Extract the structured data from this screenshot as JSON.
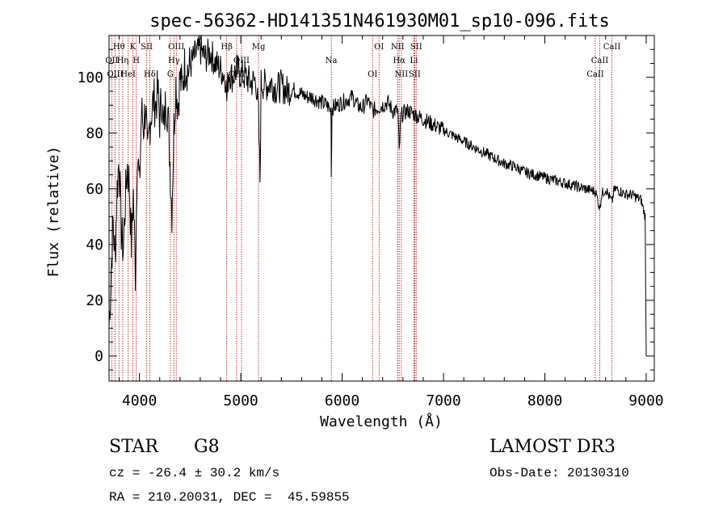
{
  "chart_data": {
    "type": "line",
    "title": "spec-56362-HD141351N461930M01_sp10-096.fits",
    "xlabel": "Wavelength (Å)",
    "ylabel": "Flux (relative)",
    "xlim": [
      3700,
      9080
    ],
    "ylim": [
      -9,
      115
    ],
    "xticks": [
      4000,
      5000,
      6000,
      7000,
      8000,
      9000
    ],
    "yticks": [
      0,
      20,
      40,
      60,
      80,
      100
    ],
    "series": [
      {
        "name": "flux",
        "x": [
          3700,
          3720,
          3740,
          3760,
          3780,
          3800,
          3820,
          3840,
          3860,
          3880,
          3900,
          3920,
          3940,
          3960,
          3980,
          4000,
          4020,
          4040,
          4060,
          4080,
          4100,
          4120,
          4140,
          4160,
          4180,
          4200,
          4220,
          4240,
          4260,
          4280,
          4300,
          4320,
          4340,
          4360,
          4380,
          4400,
          4420,
          4440,
          4460,
          4480,
          4500,
          4550,
          4600,
          4650,
          4700,
          4750,
          4800,
          4850,
          4861,
          4880,
          4920,
          4960,
          5000,
          5050,
          5100,
          5150,
          5175,
          5190,
          5200,
          5250,
          5300,
          5350,
          5400,
          5450,
          5500,
          5550,
          5600,
          5650,
          5700,
          5750,
          5800,
          5850,
          5890,
          5893,
          5900,
          5950,
          6000,
          6050,
          6100,
          6150,
          6200,
          6250,
          6300,
          6350,
          6400,
          6450,
          6500,
          6550,
          6563,
          6580,
          6600,
          6650,
          6700,
          6750,
          6800,
          6850,
          6900,
          6950,
          7000,
          7100,
          7200,
          7300,
          7400,
          7500,
          7600,
          7700,
          7800,
          7900,
          8000,
          8100,
          8200,
          8300,
          8400,
          8500,
          8542,
          8560,
          8600,
          8662,
          8680,
          8700,
          8750,
          8800,
          8850,
          8900,
          8950,
          8990,
          9000
        ],
        "y": [
          10,
          30,
          48,
          35,
          60,
          72,
          45,
          38,
          55,
          68,
          62,
          40,
          58,
          30,
          75,
          60,
          88,
          82,
          90,
          70,
          83,
          88,
          92,
          90,
          95,
          85,
          93,
          80,
          92,
          88,
          70,
          52,
          82,
          98,
          90,
          100,
          96,
          103,
          105,
          102,
          104,
          108,
          110,
          107,
          109,
          105,
          103,
          100,
          92,
          102,
          100,
          103,
          101,
          100,
          98,
          99,
          86,
          63,
          98,
          97,
          98,
          96,
          97,
          95,
          96,
          95,
          94,
          93,
          93,
          92,
          91,
          90,
          88,
          65,
          89,
          90,
          91,
          92,
          93,
          90,
          89,
          92,
          88,
          89,
          90,
          91,
          88,
          88,
          73,
          86,
          87,
          88,
          87,
          86,
          85,
          84,
          83,
          82,
          81,
          79,
          77,
          75,
          73,
          71,
          69,
          68,
          66,
          65,
          64,
          63,
          62,
          61,
          60,
          59,
          53,
          58,
          60,
          55,
          59,
          60,
          59,
          58,
          58,
          57,
          56,
          50,
          0
        ]
      }
    ],
    "spectral_lines": [
      {
        "label": "Hθ",
        "wavelength": 3798
      },
      {
        "label": "OII",
        "wavelength": 3727
      },
      {
        "label": "OIII",
        "wavelength": 3760
      },
      {
        "label": "K",
        "wavelength": 3934
      },
      {
        "label": "Hη",
        "wavelength": 3835
      },
      {
        "label": "HeI",
        "wavelength": 3889
      },
      {
        "label": "SII",
        "wavelength": 4072
      },
      {
        "label": "H",
        "wavelength": 3968
      },
      {
        "label": "Hδ",
        "wavelength": 4102
      },
      {
        "label": "OIII",
        "wavelength": 4363
      },
      {
        "label": "Hγ",
        "wavelength": 4340
      },
      {
        "label": "G",
        "wavelength": 4305
      },
      {
        "label": "Hβ",
        "wavelength": 4861
      },
      {
        "label": "OIII",
        "wavelength": 5007
      },
      {
        "label": "OIII",
        "wavelength": 4959
      },
      {
        "label": "Mg",
        "wavelength": 5175
      },
      {
        "label": "Na",
        "wavelength": 5893
      },
      {
        "label": "OI",
        "wavelength": 6300
      },
      {
        "label": "OI",
        "wavelength": 6364
      },
      {
        "label": "Hα",
        "wavelength": 6563
      },
      {
        "label": "SII",
        "wavelength": 6716
      },
      {
        "label": "NII",
        "wavelength": 6548
      },
      {
        "label": "Li",
        "wavelength": 6708
      },
      {
        "label": "NII",
        "wavelength": 6584
      },
      {
        "label": "SII",
        "wavelength": 6731
      },
      {
        "label": "CaII",
        "wavelength": 8542
      },
      {
        "label": "CaII",
        "wavelength": 8498
      },
      {
        "label": "CaII",
        "wavelength": 8662
      }
    ]
  },
  "info": {
    "object_class": "STAR",
    "subclass": "G8",
    "survey": "LAMOST DR3",
    "cz": "cz = -26.4 ± 30.2 km/s",
    "obs_date": "Obs-Date: 20130310",
    "coords": "RA = 210.20031, DEC =  45.59855"
  }
}
